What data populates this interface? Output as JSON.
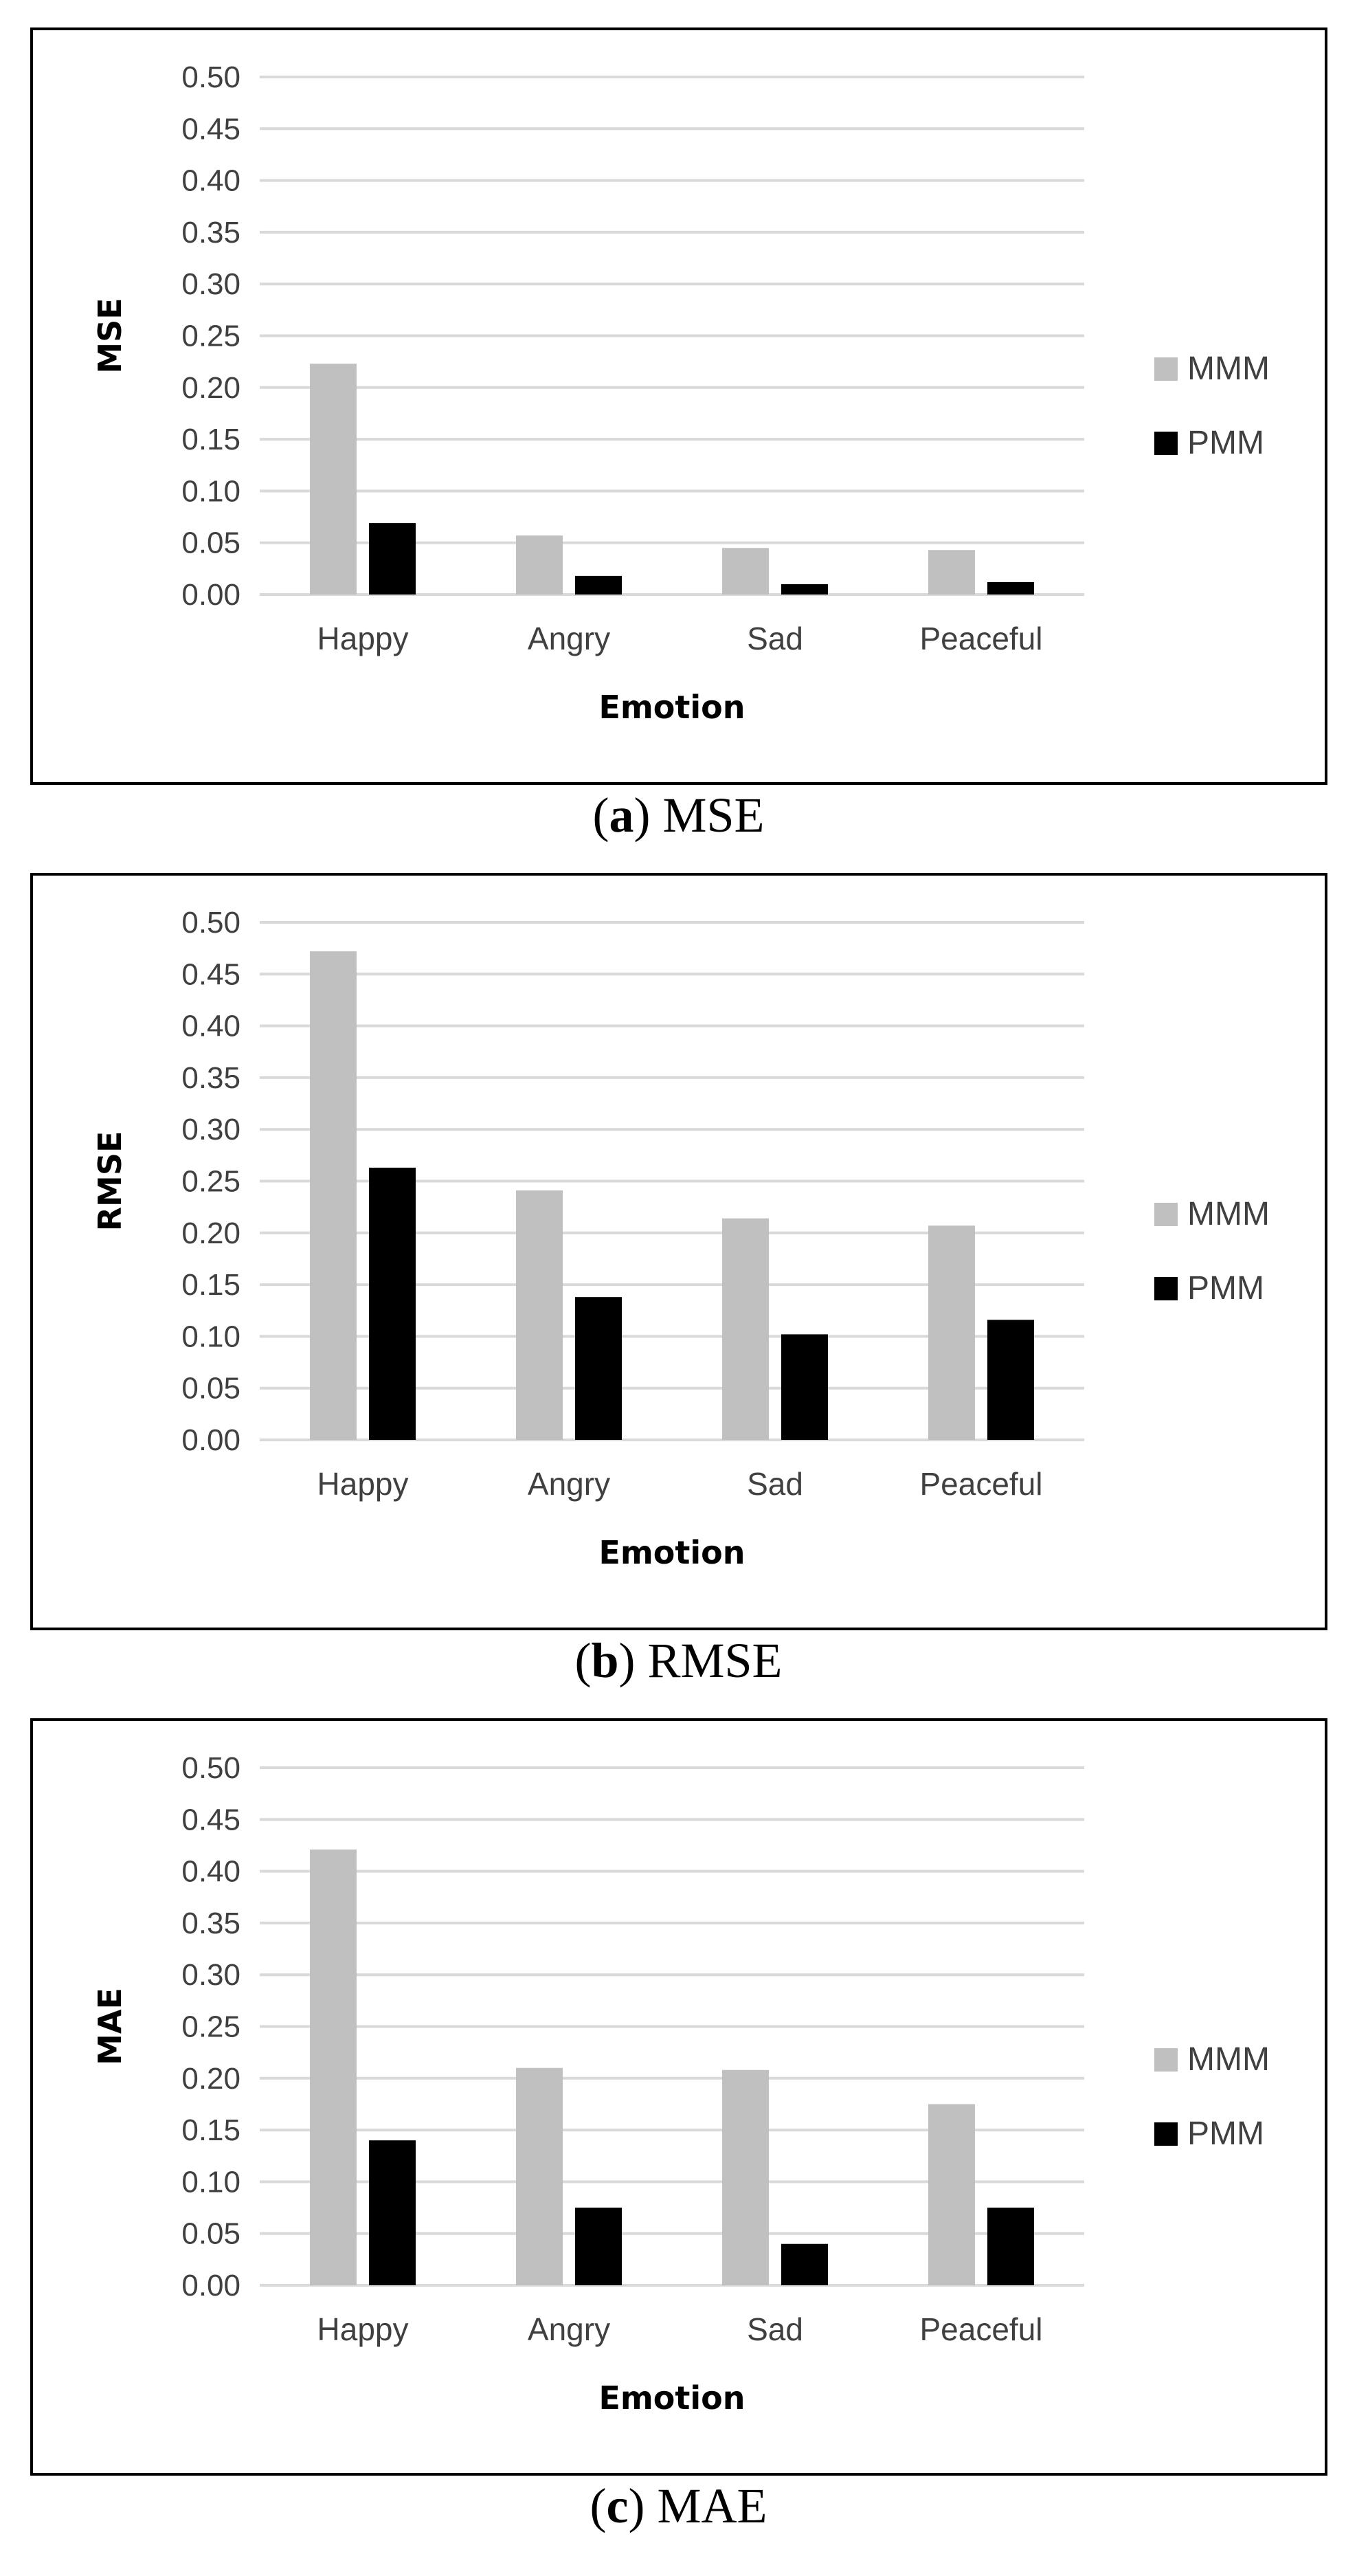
{
  "colors": {
    "MMM": "#c0c0c0",
    "PMM": "#000000",
    "grid": "#d9d9d9"
  },
  "chart_data": [
    {
      "type": "bar",
      "title": "",
      "caption_letter": "a",
      "caption_text": "MSE",
      "xlabel": "Emotion",
      "ylabel": "MSE",
      "ylim": [
        0,
        0.5
      ],
      "yticks": [
        "0.00",
        "0.05",
        "0.10",
        "0.15",
        "0.20",
        "0.25",
        "0.30",
        "0.35",
        "0.40",
        "0.45",
        "0.50"
      ],
      "categories": [
        "Happy",
        "Angry",
        "Sad",
        "Peaceful"
      ],
      "legend_position": "right",
      "series": [
        {
          "name": "MMM",
          "values": [
            0.223,
            0.057,
            0.045,
            0.043
          ]
        },
        {
          "name": "PMM",
          "values": [
            0.069,
            0.018,
            0.01,
            0.012
          ]
        }
      ]
    },
    {
      "type": "bar",
      "title": "",
      "caption_letter": "b",
      "caption_text": "RMSE",
      "xlabel": "Emotion",
      "ylabel": "RMSE",
      "ylim": [
        0,
        0.5
      ],
      "yticks": [
        "0.00",
        "0.05",
        "0.10",
        "0.15",
        "0.20",
        "0.25",
        "0.30",
        "0.35",
        "0.40",
        "0.45",
        "0.50"
      ],
      "categories": [
        "Happy",
        "Angry",
        "Sad",
        "Peaceful"
      ],
      "legend_position": "right",
      "series": [
        {
          "name": "MMM",
          "values": [
            0.472,
            0.241,
            0.214,
            0.207
          ]
        },
        {
          "name": "PMM",
          "values": [
            0.263,
            0.138,
            0.102,
            0.116
          ]
        }
      ]
    },
    {
      "type": "bar",
      "title": "",
      "caption_letter": "c",
      "caption_text": "MAE",
      "xlabel": "Emotion",
      "ylabel": "MAE",
      "ylim": [
        0,
        0.5
      ],
      "yticks": [
        "0.00",
        "0.05",
        "0.10",
        "0.15",
        "0.20",
        "0.25",
        "0.30",
        "0.35",
        "0.40",
        "0.45",
        "0.50"
      ],
      "categories": [
        "Happy",
        "Angry",
        "Sad",
        "Peaceful"
      ],
      "legend_position": "right",
      "series": [
        {
          "name": "MMM",
          "values": [
            0.421,
            0.21,
            0.208,
            0.175
          ]
        },
        {
          "name": "PMM",
          "values": [
            0.14,
            0.075,
            0.04,
            0.075
          ]
        }
      ]
    }
  ]
}
